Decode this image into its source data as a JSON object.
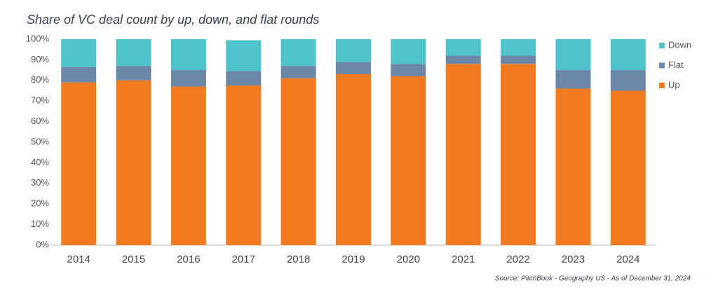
{
  "chart_data": {
    "type": "stacked_bar",
    "title": "Share of VC deal count by up, down, and flat rounds",
    "source": "Source: PitchBook - Geography US - As of December 31, 2024",
    "categories": [
      "2014",
      "2015",
      "2016",
      "2017",
      "2018",
      "2019",
      "2020",
      "2021",
      "2022",
      "2023",
      "2024"
    ],
    "series": [
      {
        "name": "Up",
        "color": "#f47a20",
        "values": [
          79,
          80,
          77,
          77.5,
          81,
          83,
          82,
          88,
          88,
          76,
          75
        ]
      },
      {
        "name": "Flat",
        "color": "#6c86a8",
        "values": [
          7.5,
          7,
          8,
          7,
          6,
          6,
          6,
          4,
          4,
          9,
          10
        ]
      },
      {
        "name": "Down",
        "color": "#4fc3cc",
        "values": [
          13.5,
          13,
          15,
          15,
          13,
          11,
          12,
          8,
          8,
          15,
          15
        ]
      }
    ],
    "ylim": [
      0,
      100
    ],
    "yticks": [
      {
        "value": 0,
        "label": "0%"
      },
      {
        "value": 10,
        "label": "10%"
      },
      {
        "value": 20,
        "label": "20%"
      },
      {
        "value": 30,
        "label": "30%"
      },
      {
        "value": 40,
        "label": "40%"
      },
      {
        "value": 50,
        "label": "50%"
      },
      {
        "value": 60,
        "label": "60%"
      },
      {
        "value": 70,
        "label": "70%"
      },
      {
        "value": 80,
        "label": "80%"
      },
      {
        "value": 90,
        "label": "90%"
      },
      {
        "value": 100,
        "label": "100%"
      }
    ],
    "legend": "right"
  }
}
